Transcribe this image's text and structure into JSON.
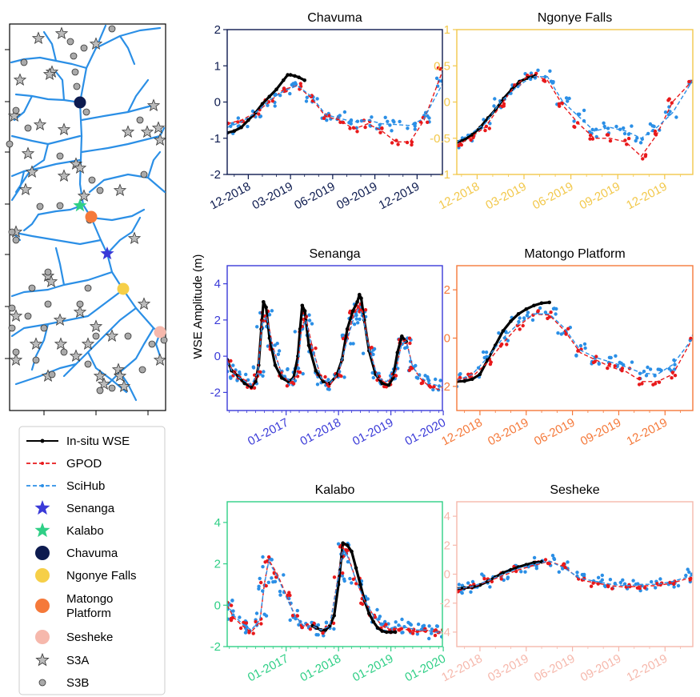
{
  "figure": {
    "ylabel": "WSE Amplitude (m)"
  },
  "map": {
    "river_color": "#2b8fe6",
    "s3a_color": "#bbbbbb",
    "s3b_color": "#aaaaaa"
  },
  "legend": {
    "items": [
      {
        "label": "In-situ WSE",
        "kind": "line-insitu",
        "color": "#000000"
      },
      {
        "label": "GPOD",
        "kind": "line-gpod",
        "color": "#e8191b"
      },
      {
        "label": "SciHub",
        "kind": "line-scihub",
        "color": "#2b8fe6"
      },
      {
        "label": "Senanga",
        "kind": "star",
        "color": "#3a3ad8"
      },
      {
        "label": "Kalabo",
        "kind": "star",
        "color": "#2fcf86"
      },
      {
        "label": "Chavuma",
        "kind": "circle",
        "color": "#0d1b4f"
      },
      {
        "label": "Ngonye Falls",
        "kind": "circle",
        "color": "#f6cf48"
      },
      {
        "label": "Matongo\nPlatform",
        "kind": "circle",
        "color": "#f5793a"
      },
      {
        "label": "Sesheke",
        "kind": "circle",
        "color": "#f6b8ac"
      },
      {
        "label": "S3A",
        "kind": "star-gray",
        "color": "#bbbbbb"
      },
      {
        "label": "S3B",
        "kind": "circle-gray",
        "color": "#aaaaaa"
      }
    ]
  },
  "chart_data": [
    {
      "type": "line",
      "title": "Chavuma",
      "color": "#0d1b4f",
      "x_unit": "month",
      "xlim": [
        -1.5,
        13.8
      ],
      "ylim": [
        -2,
        2
      ],
      "yticks": [
        -2,
        -1,
        0,
        1,
        2
      ],
      "xticks": [
        {
          "label": "12-2018",
          "x": 0
        },
        {
          "label": "03-2019",
          "x": 3
        },
        {
          "label": "06-2019",
          "x": 6
        },
        {
          "label": "09-2019",
          "x": 9
        },
        {
          "label": "12-2019",
          "x": 12
        }
      ],
      "series": [
        {
          "name": "In-situ WSE",
          "x": [
            -1.5,
            -1,
            -0.5,
            0,
            0.5,
            1,
            1.5,
            2,
            2.5,
            2.8,
            3,
            3.3,
            3.6,
            4
          ],
          "y": [
            -0.85,
            -0.8,
            -0.7,
            -0.5,
            -0.3,
            -0.05,
            0.15,
            0.35,
            0.6,
            0.75,
            0.75,
            0.72,
            0.68,
            0.6
          ]
        },
        {
          "name": "GPOD",
          "x": [
            -1.5,
            -0.5,
            0.5,
            1.5,
            2.5,
            3.5,
            4.5,
            5.5,
            6.5,
            7.5,
            8.5,
            9.5,
            10.5,
            11.5,
            12.5,
            13.8
          ],
          "y": [
            -0.6,
            -0.5,
            -0.3,
            0,
            0.35,
            0.45,
            0.1,
            -0.4,
            -0.5,
            -0.75,
            -0.6,
            -0.8,
            -1.1,
            -1.1,
            -0.5,
            0.85
          ]
        },
        {
          "name": "SciHub",
          "x": [
            -1.5,
            -0.5,
            0.5,
            1.5,
            2.5,
            3.5,
            4.5,
            5.5,
            6.5,
            7.5,
            8.5,
            9.5,
            10.5,
            11.5,
            12.5,
            13.8
          ],
          "y": [
            -0.7,
            -0.55,
            -0.3,
            0.05,
            0.3,
            0.45,
            0.15,
            -0.35,
            -0.45,
            -0.55,
            -0.5,
            -0.6,
            -0.62,
            -0.65,
            -0.45,
            0.5
          ]
        }
      ]
    },
    {
      "type": "line",
      "title": "Ngonye Falls",
      "color": "#f2c84b",
      "x_unit": "month",
      "xlim": [
        -1.3,
        13.8
      ],
      "ylim": [
        -1,
        1
      ],
      "yticks": [
        -1,
        -0.5,
        0,
        0.5,
        1
      ],
      "xticks": [
        {
          "label": "12-2018",
          "x": 0
        },
        {
          "label": "03-2019",
          "x": 3
        },
        {
          "label": "06-2019",
          "x": 6
        },
        {
          "label": "09-2019",
          "x": 9
        },
        {
          "label": "12-2019",
          "x": 12
        }
      ],
      "series": [
        {
          "name": "In-situ WSE",
          "x": [
            -1.3,
            -0.8,
            -0.3,
            0.2,
            0.7,
            1.2,
            1.7,
            2.2,
            2.7,
            3.2,
            3.7
          ],
          "y": [
            -0.55,
            -0.52,
            -0.45,
            -0.35,
            -0.22,
            -0.1,
            0.05,
            0.17,
            0.28,
            0.33,
            0.36
          ]
        },
        {
          "name": "GPOD",
          "x": [
            -1.3,
            -0.5,
            0.5,
            1.5,
            2.5,
            3.5,
            4.5,
            5.5,
            6.5,
            7.5,
            8.5,
            9.5,
            10.5,
            11.5,
            12.5,
            13.8
          ],
          "y": [
            -0.6,
            -0.5,
            -0.35,
            -0.05,
            0.25,
            0.38,
            0.3,
            -0.05,
            -0.3,
            -0.5,
            -0.5,
            -0.55,
            -0.75,
            -0.45,
            0,
            0.3
          ]
        },
        {
          "name": "SciHub",
          "x": [
            -1.3,
            -0.5,
            0.5,
            1.5,
            2.5,
            3.5,
            4.5,
            5.5,
            6.5,
            7.5,
            8.5,
            9.5,
            10.5,
            11.5,
            12.5,
            13.8
          ],
          "y": [
            -0.55,
            -0.45,
            -0.3,
            0,
            0.2,
            0.35,
            0.35,
            0,
            -0.2,
            -0.4,
            -0.35,
            -0.4,
            -0.5,
            -0.35,
            -0.15,
            0.3
          ]
        }
      ]
    },
    {
      "type": "line",
      "title": "Senanga",
      "color": "#3a3ad8",
      "x_unit": "month",
      "xlim": [
        -13.5,
        35.8
      ],
      "ylim": [
        -3,
        5
      ],
      "yticks": [
        -2,
        0,
        2,
        4
      ],
      "xticks": [
        {
          "label": "01-2017",
          "x": 0
        },
        {
          "label": "01-2018",
          "x": 12
        },
        {
          "label": "01-2019",
          "x": 24
        },
        {
          "label": "01-2020",
          "x": 36
        }
      ],
      "series": [
        {
          "name": "In-situ WSE",
          "x": [
            -13.5,
            -12.5,
            -11,
            -9.5,
            -8,
            -7,
            -6.3,
            -5.7,
            -5.2,
            -4.6,
            -3.8,
            -2.5,
            -1,
            0.5,
            1.7,
            2.7,
            3.2,
            3.7,
            4.3,
            5.2,
            6.8,
            8.5,
            10,
            11.5,
            12.8,
            14,
            15.3,
            16.3,
            16.8,
            17.2,
            17.9,
            19,
            20.5,
            22,
            23.5,
            24.5,
            25.5,
            26.5,
            27.5
          ],
          "y": [
            -0.2,
            -0.8,
            -1.1,
            -1.5,
            -1.7,
            -1.4,
            -0.5,
            1.5,
            3.0,
            2.7,
            1.0,
            -0.5,
            -1.2,
            -1.4,
            -1.2,
            0,
            1.5,
            2.8,
            2.5,
            0.6,
            -0.8,
            -1.4,
            -1.5,
            -1.1,
            -0.2,
            1.5,
            2.5,
            3.0,
            3.4,
            3.2,
            2.0,
            0.3,
            -1.0,
            -1.5,
            -1.6,
            -1.2,
            0.2,
            1.1,
            0.8
          ]
        },
        {
          "name": "GPOD",
          "x": [
            -13.5,
            -12,
            -10,
            -8,
            -6.5,
            -5.5,
            -4.5,
            -3,
            -1,
            1,
            2.5,
            3.5,
            4.5,
            6,
            8,
            10,
            12,
            14,
            15.5,
            16.5,
            17.5,
            19,
            21,
            23,
            25,
            26.5,
            27.5,
            29,
            31,
            33,
            35.8
          ],
          "y": [
            -0.2,
            -0.9,
            -1.2,
            -1.7,
            -1.0,
            2.0,
            2.3,
            0.5,
            -1.0,
            -1.5,
            -1.0,
            1.5,
            2.2,
            0.5,
            -1.2,
            -1.6,
            -1.0,
            1.0,
            2.3,
            2.8,
            2.5,
            0.5,
            -1.2,
            -1.5,
            -1.0,
            0.8,
            0.9,
            -0.6,
            -1.3,
            -1.7,
            -1.9
          ]
        },
        {
          "name": "SciHub",
          "x": [
            -13.5,
            -12,
            -10,
            -8,
            -6.5,
            -5.5,
            -4.5,
            -3,
            -1,
            1,
            2.5,
            3.5,
            4.5,
            6,
            8,
            10,
            12,
            14,
            15.5,
            16.5,
            17.5,
            19,
            21,
            23,
            25,
            26.5,
            27.5,
            29,
            31,
            33,
            35.8
          ],
          "y": [
            -0.3,
            -1.0,
            -1.3,
            -1.6,
            -0.9,
            1.8,
            2.2,
            0.4,
            -1.0,
            -1.4,
            -1.0,
            1.4,
            2.0,
            0.4,
            -1.2,
            -1.5,
            -0.9,
            0.9,
            2.1,
            2.6,
            2.3,
            0.4,
            -1.2,
            -1.4,
            -0.9,
            0.7,
            0.8,
            -0.6,
            -1.2,
            -1.5,
            -1.7
          ]
        }
      ]
    },
    {
      "type": "line",
      "title": "Matongo Platform",
      "color": "#f5793a",
      "x_unit": "month",
      "xlim": [
        -1.5,
        13.8
      ],
      "ylim": [
        -3,
        3
      ],
      "yticks": [
        -2,
        0,
        2
      ],
      "xticks": [
        {
          "label": "12-2018",
          "x": 0
        },
        {
          "label": "03-2019",
          "x": 3
        },
        {
          "label": "06-2019",
          "x": 6
        },
        {
          "label": "09-2019",
          "x": 9
        },
        {
          "label": "12-2019",
          "x": 12
        }
      ],
      "series": [
        {
          "name": "In-situ WSE",
          "x": [
            -1.5,
            -1,
            -0.5,
            0,
            0.5,
            1,
            1.5,
            2,
            2.5,
            3,
            3.5,
            4,
            4.5
          ],
          "y": [
            -1.8,
            -1.78,
            -1.7,
            -1.5,
            -0.9,
            -0.3,
            0.3,
            0.7,
            1.0,
            1.2,
            1.35,
            1.45,
            1.48
          ]
        },
        {
          "name": "GPOD",
          "x": [
            -1.5,
            -0.5,
            0.5,
            1.5,
            2.5,
            3.5,
            4.5,
            5.5,
            6.5,
            7.5,
            8.5,
            9.5,
            10.5,
            11.5,
            12.5,
            13.8
          ],
          "y": [
            -1.75,
            -1.6,
            -1.0,
            -0.2,
            0.5,
            1.0,
            0.95,
            0.3,
            -0.6,
            -0.9,
            -1.2,
            -1.4,
            -1.8,
            -1.8,
            -1.5,
            0
          ]
        },
        {
          "name": "SciHub",
          "x": [
            -1.5,
            -0.5,
            0.5,
            1.5,
            2.5,
            3.5,
            4.5,
            5.5,
            6.5,
            7.5,
            8.5,
            9.5,
            10.5,
            11.5,
            12.5,
            13.8
          ],
          "y": [
            -1.75,
            -1.5,
            -0.8,
            0,
            0.6,
            1.0,
            1.0,
            0.4,
            -0.5,
            -0.8,
            -1.0,
            -1.2,
            -1.45,
            -1.5,
            -1.1,
            0
          ]
        }
      ]
    },
    {
      "type": "line",
      "title": "Kalabo",
      "color": "#2fcf86",
      "x_unit": "month",
      "xlim": [
        -13.5,
        35.8
      ],
      "ylim": [
        -2,
        5
      ],
      "yticks": [
        -2,
        0,
        2,
        4
      ],
      "xticks": [
        {
          "label": "01-2017",
          "x": 0
        },
        {
          "label": "01-2018",
          "x": 12
        },
        {
          "label": "01-2019",
          "x": 24
        },
        {
          "label": "01-2020",
          "x": 36
        }
      ],
      "series": [
        {
          "name": "In-situ WSE",
          "x": [
            6,
            7,
            8,
            9,
            10,
            11,
            12,
            13,
            14,
            15,
            16,
            17,
            18,
            19,
            20,
            21,
            22,
            23,
            24,
            25
          ],
          "y": [
            -1.0,
            -1.1,
            -1.2,
            -1.2,
            -1.0,
            -0.5,
            1.0,
            3.0,
            2.9,
            2.6,
            1.8,
            1.0,
            0.2,
            -0.4,
            -0.8,
            -1.1,
            -1.25,
            -1.3,
            -1.3,
            -1.3
          ]
        },
        {
          "name": "GPOD",
          "x": [
            -13.5,
            -12,
            -10,
            -8,
            -6,
            -5,
            -4,
            -2,
            0,
            2,
            4,
            6,
            8,
            10,
            12,
            13,
            14,
            16,
            18,
            20,
            22,
            24,
            26,
            28,
            30,
            32,
            34,
            35.8
          ],
          "y": [
            0,
            -0.6,
            -1.0,
            -1.3,
            -0.8,
            1.0,
            2.2,
            1.5,
            0.5,
            -0.5,
            -1.0,
            -1.0,
            -1.2,
            -1.0,
            1.5,
            2.8,
            2.5,
            1.2,
            0.2,
            -0.5,
            -1.0,
            -1.2,
            -1.1,
            -1.2,
            -1.3,
            -1.2,
            -1.3,
            -1.3
          ]
        },
        {
          "name": "SciHub",
          "x": [
            -13.5,
            -12,
            -10,
            -8,
            -6,
            -5,
            -4,
            -2,
            0,
            2,
            4,
            6,
            8,
            10,
            12,
            13,
            14,
            16,
            18,
            20,
            22,
            24,
            26,
            28,
            30,
            32,
            34,
            35.8
          ],
          "y": [
            0.1,
            -0.5,
            -0.9,
            -1.2,
            -0.7,
            1.0,
            2.1,
            1.4,
            0.4,
            -0.5,
            -1.0,
            -1.0,
            -1.2,
            -1.0,
            1.4,
            2.7,
            2.4,
            1.2,
            0.2,
            -0.5,
            -1.0,
            -1.1,
            -1.0,
            -1.1,
            -1.2,
            -1.2,
            -1.3,
            -1.3
          ]
        }
      ]
    },
    {
      "type": "line",
      "title": "Sesheke",
      "color": "#f6b8ac",
      "x_unit": "month",
      "xlim": [
        -1.5,
        13.8
      ],
      "ylim": [
        -5,
        5
      ],
      "yticks": [
        -4,
        -2,
        0,
        2,
        4
      ],
      "xticks": [
        {
          "label": "12-2018",
          "x": 0
        },
        {
          "label": "03-2019",
          "x": 3
        },
        {
          "label": "06-2019",
          "x": 6
        },
        {
          "label": "09-2019",
          "x": 9
        },
        {
          "label": "12-2019",
          "x": 12
        }
      ],
      "series": [
        {
          "name": "In-situ WSE",
          "x": [
            -1.5,
            -1,
            -0.5,
            0,
            0.5,
            1,
            1.5,
            2,
            2.5,
            3,
            3.5,
            4
          ],
          "y": [
            -1.0,
            -0.95,
            -0.9,
            -0.75,
            -0.5,
            -0.2,
            0.1,
            0.3,
            0.5,
            0.65,
            0.8,
            0.85
          ]
        },
        {
          "name": "GPOD",
          "x": [
            -1.5,
            -0.5,
            0.5,
            1.5,
            2.5,
            3.5,
            4.5,
            5.5,
            6.5,
            7.5,
            8.5,
            9.5,
            10.5,
            11.5,
            12.5,
            13.8
          ],
          "y": [
            -1.0,
            -0.9,
            -0.5,
            -0.1,
            0.3,
            0.6,
            0.9,
            0.5,
            -0.4,
            -0.6,
            -0.8,
            -0.9,
            -0.8,
            -0.8,
            -0.6,
            -0.2
          ]
        },
        {
          "name": "SciHub",
          "x": [
            -1.5,
            -0.5,
            0.5,
            1.5,
            2.5,
            3.5,
            4.5,
            5.5,
            6.5,
            7.5,
            8.5,
            9.5,
            10.5,
            11.5,
            12.5,
            13.8
          ],
          "y": [
            -1.0,
            -0.85,
            -0.45,
            0,
            0.4,
            0.7,
            0.9,
            0.4,
            -0.3,
            -0.5,
            -0.7,
            -0.8,
            -0.7,
            -0.7,
            -0.5,
            -0.1
          ]
        }
      ]
    }
  ]
}
